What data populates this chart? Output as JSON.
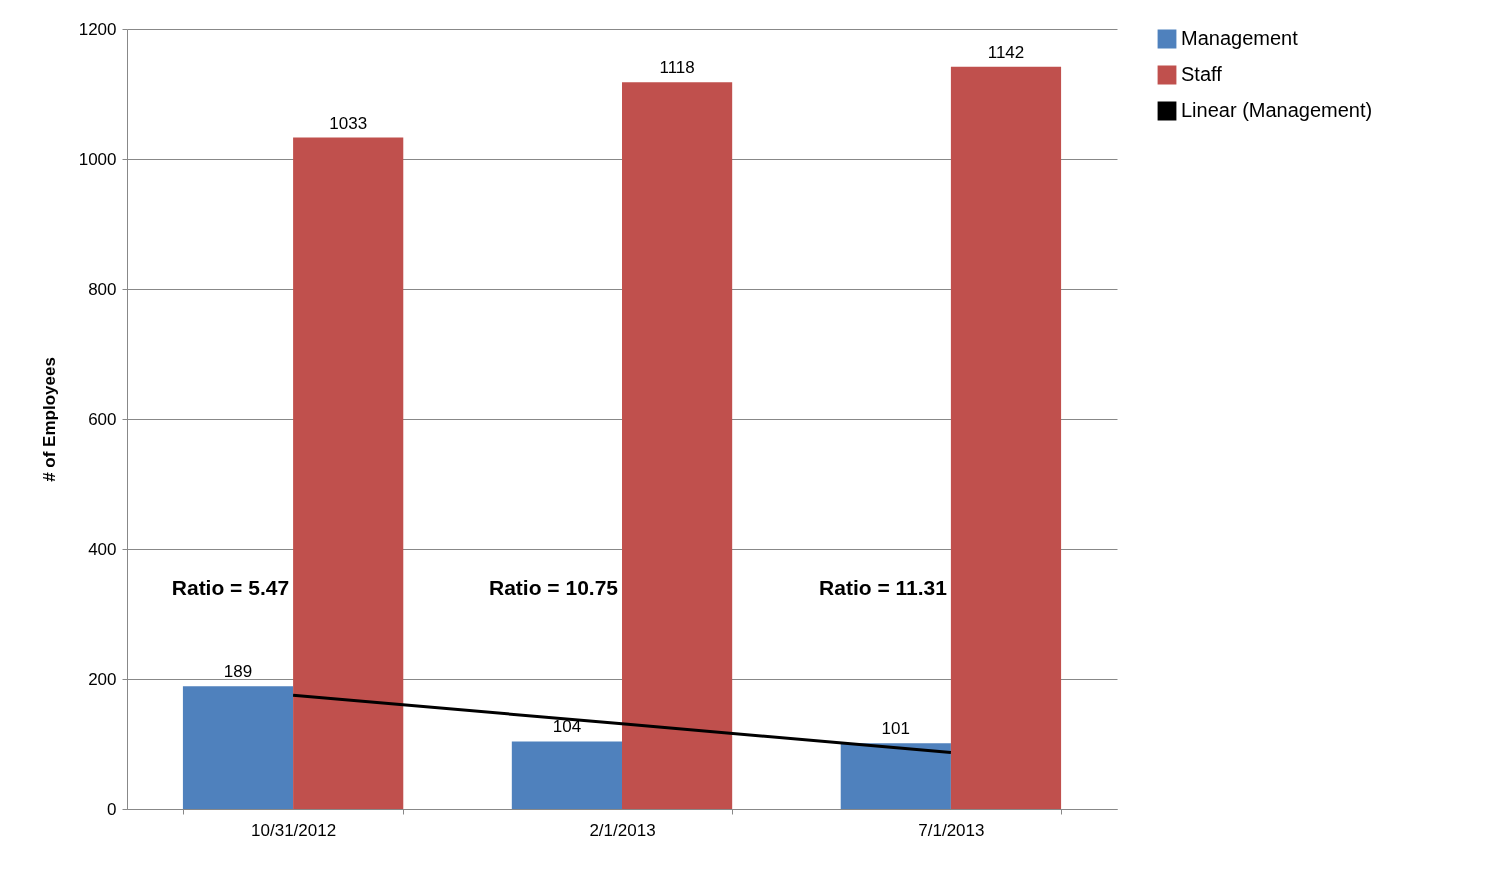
{
  "chart_data": {
    "type": "bar",
    "ylabel": "# of Employees",
    "categories": [
      "10/31/2012",
      "2/1/2013",
      "7/1/2013"
    ],
    "series": [
      {
        "name": "Management",
        "color": "#4f81bd",
        "values": [
          189,
          104,
          101
        ],
        "value_labels": [
          "189",
          "104",
          "101"
        ]
      },
      {
        "name": "Staff",
        "color": "#c0504d",
        "values": [
          1033,
          1118,
          1142
        ],
        "value_labels": [
          "1033",
          "1118",
          "1142"
        ]
      },
      {
        "name": "Linear (Management)",
        "type": "line",
        "color": "#000000",
        "values": [
          175,
          131,
          87
        ]
      }
    ],
    "annotations": [
      "Ratio = 5.47",
      "Ratio = 10.75",
      "Ratio = 11.31"
    ],
    "ylim": [
      0,
      1200
    ],
    "yticks": [
      0,
      200,
      400,
      600,
      800,
      1000,
      1200
    ],
    "grid": "y",
    "legend": "right"
  }
}
